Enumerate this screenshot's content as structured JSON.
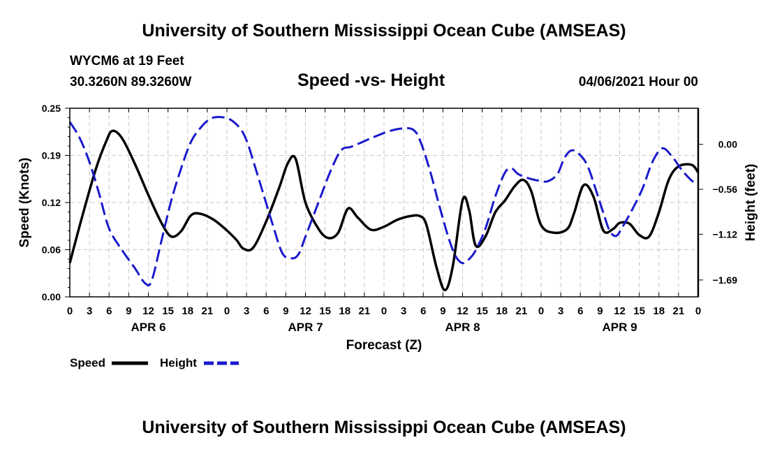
{
  "header": {
    "title_top": "University of Southern Mississippi Ocean Cube (AMSEAS)",
    "station": "WYCM6 at 19 Feet",
    "coords": "30.3260N  89.3260W",
    "subtitle": "Speed -vs- Height",
    "datetime": "04/06/2021 Hour 00",
    "title_bottom": "University of Southern Mississippi Ocean Cube (AMSEAS)"
  },
  "chart_data": {
    "type": "line",
    "xlabel": "Forecast (Z)",
    "ylabel_left": "Speed (Knots)",
    "ylabel_right": "Height (feet)",
    "x_range_hours": [
      0,
      96
    ],
    "x_tick_labels": [
      "0",
      "3",
      "6",
      "9",
      "12",
      "15",
      "18",
      "21",
      "0",
      "3",
      "6",
      "9",
      "12",
      "15",
      "18",
      "21",
      "0",
      "3",
      "6",
      "9",
      "12",
      "15",
      "18",
      "21",
      "0",
      "3",
      "6",
      "9",
      "12",
      "15",
      "18",
      "21",
      "0"
    ],
    "day_labels": [
      {
        "hour": 12,
        "label": "APR 6"
      },
      {
        "hour": 36,
        "label": "APR 7"
      },
      {
        "hour": 60,
        "label": "APR 8"
      },
      {
        "hour": 84,
        "label": "APR 9"
      }
    ],
    "ylim_left": [
      0,
      0.25
    ],
    "yticks_left": [
      "0.00",
      "0.06",
      "0.12",
      "0.19",
      "0.25"
    ],
    "ylim_right": [
      -1.9,
      0.45
    ],
    "yticks_right": [
      {
        "value": 0.0,
        "label": "0.00"
      },
      {
        "value": -0.56,
        "label": "−0.56"
      },
      {
        "value": -1.12,
        "label": "−1.12"
      },
      {
        "value": -1.69,
        "label": "−1.69"
      }
    ],
    "grid": true,
    "legend": [
      {
        "label": "Speed",
        "color": "#000000",
        "style": "solid"
      },
      {
        "label": "Height",
        "color": "#1a1acc",
        "style": "dashed"
      }
    ],
    "series": [
      {
        "name": "Speed",
        "axis": "left",
        "color": "#000000",
        "dash": false,
        "x": [
          0,
          2,
          4,
          5.5,
          6.5,
          8,
          10,
          12,
          14,
          15.5,
          17,
          18.5,
          20,
          22,
          24,
          25.5,
          26.5,
          28,
          30,
          32,
          33.3,
          34.5,
          36,
          38,
          39.5,
          41,
          42.5,
          44,
          46,
          48,
          50,
          52,
          53.5,
          54.5,
          56,
          57.3,
          58.5,
          60,
          61,
          62,
          63.5,
          65,
          66.5,
          68,
          69.3,
          70.5,
          72,
          74,
          76,
          77,
          78.5,
          80,
          81.5,
          83,
          84,
          85.5,
          87,
          88.5,
          90,
          91.5,
          93,
          95,
          96
        ],
        "y": [
          0.045,
          0.11,
          0.17,
          0.205,
          0.22,
          0.21,
          0.175,
          0.135,
          0.098,
          0.08,
          0.087,
          0.108,
          0.11,
          0.102,
          0.088,
          0.075,
          0.064,
          0.065,
          0.1,
          0.145,
          0.177,
          0.183,
          0.125,
          0.09,
          0.078,
          0.085,
          0.117,
          0.105,
          0.089,
          0.093,
          0.102,
          0.107,
          0.107,
          0.095,
          0.04,
          0.009,
          0.04,
          0.128,
          0.115,
          0.068,
          0.08,
          0.112,
          0.128,
          0.147,
          0.155,
          0.14,
          0.095,
          0.085,
          0.09,
          0.11,
          0.148,
          0.133,
          0.088,
          0.09,
          0.098,
          0.097,
          0.082,
          0.08,
          0.112,
          0.155,
          0.173,
          0.175,
          0.165
        ]
      },
      {
        "name": "Height",
        "axis": "right",
        "color": "#1a1acc",
        "dash": true,
        "x": [
          0,
          1.5,
          3,
          4.5,
          6,
          8,
          10,
          11.5,
          12.5,
          14,
          15.5,
          17,
          18.5,
          20,
          21.5,
          23,
          24.5,
          26,
          27,
          28,
          29.5,
          31,
          32.5,
          34,
          35,
          36,
          38,
          40,
          41.5,
          43,
          45,
          47,
          49,
          51,
          52.5,
          53.5,
          55,
          56.5,
          58,
          59,
          60,
          61,
          62,
          63.5,
          65,
          66.5,
          67.5,
          68.5,
          70,
          71.5,
          73,
          74.5,
          75.5,
          76.5,
          77.5,
          79,
          80.5,
          81.5,
          82.5,
          83.5,
          84.5,
          86,
          87.5,
          89,
          90.5,
          92,
          93.5,
          95,
          96
        ],
        "y": [
          0.28,
          0.08,
          -0.22,
          -0.62,
          -1.05,
          -1.32,
          -1.55,
          -1.73,
          -1.7,
          -1.2,
          -0.7,
          -0.3,
          0.03,
          0.21,
          0.32,
          0.34,
          0.31,
          0.2,
          0.05,
          -0.2,
          -0.6,
          -1.0,
          -1.36,
          -1.42,
          -1.36,
          -1.15,
          -0.72,
          -0.3,
          -0.07,
          -0.03,
          0.04,
          0.11,
          0.17,
          0.2,
          0.18,
          0.05,
          -0.32,
          -0.78,
          -1.2,
          -1.4,
          -1.48,
          -1.43,
          -1.32,
          -1.05,
          -0.65,
          -0.35,
          -0.3,
          -0.37,
          -0.42,
          -0.45,
          -0.46,
          -0.37,
          -0.18,
          -0.08,
          -0.1,
          -0.25,
          -0.6,
          -0.85,
          -1.08,
          -1.14,
          -1.02,
          -0.8,
          -0.55,
          -0.22,
          -0.05,
          -0.15,
          -0.32,
          -0.45,
          -0.5
        ]
      }
    ]
  }
}
